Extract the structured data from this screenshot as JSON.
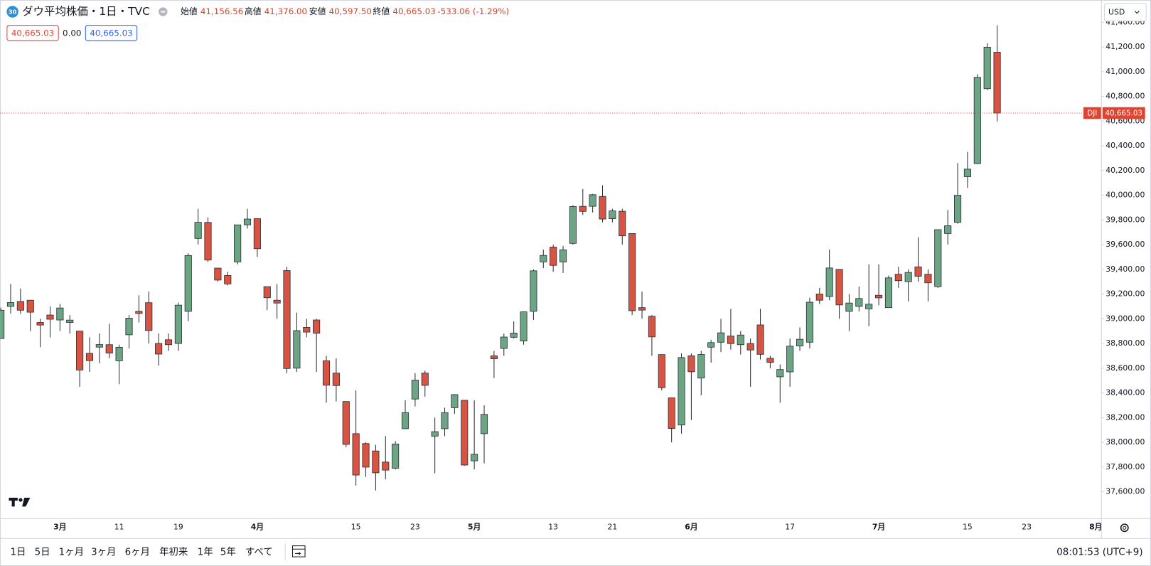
{
  "header": {
    "badge": "30",
    "symbol": "ダウ平均株価・1日・TVC",
    "ohlc": [
      {
        "label": "始値",
        "value": "41,156.56"
      },
      {
        "label": "高値",
        "value": "41,376.00"
      },
      {
        "label": "安値",
        "value": "40,597.50"
      },
      {
        "label": "終値",
        "value": "40,665.03"
      }
    ],
    "change": "-533.06 (-1.29%)",
    "bid": "40,665.03",
    "spread": "0.00",
    "ask": "40,665.03"
  },
  "currency": "USD",
  "chart_data": {
    "type": "candlestick",
    "symbol_tag": "DJI",
    "last_price": 40665.03,
    "last_price_label": "40,665.03",
    "up_color": "#6ba583",
    "down_color": "#d75442",
    "line_color": "#e0432f",
    "grid": false,
    "categories": [
      null,
      null,
      null,
      null,
      null,
      null,
      "3月",
      null,
      null,
      null,
      null,
      null,
      "11",
      null,
      null,
      null,
      null,
      null,
      "19",
      null,
      null,
      null,
      null,
      null,
      null,
      null,
      "4月",
      null,
      null,
      null,
      null,
      null,
      null,
      null,
      null,
      null,
      "15",
      null,
      null,
      null,
      null,
      null,
      "23",
      null,
      null,
      null,
      null,
      null,
      "5月",
      null,
      null,
      null,
      null,
      null,
      null,
      null,
      "13",
      null,
      null,
      null,
      null,
      null,
      "21",
      null,
      null,
      null,
      null,
      null,
      null,
      null,
      "6月",
      null,
      null,
      null,
      null,
      null,
      null,
      null,
      null,
      null,
      "17",
      null,
      null,
      null,
      null,
      null,
      null,
      null,
      null,
      "7月",
      null,
      null,
      null,
      null,
      null,
      null,
      null,
      null,
      "15",
      null,
      null,
      null,
      null,
      null,
      "23",
      null,
      null,
      null,
      null,
      null,
      null,
      "8月"
    ],
    "open": [
      38840,
      39100,
      39140,
      39150,
      38970,
      39030,
      38990,
      38970,
      38900,
      38720,
      38770,
      38790,
      38660,
      38870,
      39060,
      39130,
      38800,
      38830,
      38800,
      39060,
      39650,
      39780,
      39410,
      39350,
      39460,
      39760,
      39810,
      39260,
      39150,
      39390,
      38600,
      38930,
      38990,
      38660,
      38560,
      38330,
      38070,
      37990,
      37930,
      37840,
      37790,
      38110,
      38350,
      38560,
      38050,
      38110,
      38280,
      38340,
      37850,
      38070,
      38700,
      38760,
      38850,
      38820,
      39060,
      39460,
      39580,
      39460,
      39610,
      39910,
      39910,
      39990,
      39810,
      39870,
      39690,
      39090,
      39020,
      38710,
      38360,
      38140,
      38700,
      38520,
      38770,
      38810,
      38860,
      38790,
      38800,
      38950,
      38680,
      38530,
      38570,
      38780,
      38810,
      39200,
      39180,
      39400,
      39060,
      39100,
      39080,
      39190,
      39090,
      39360,
      39300,
      39420,
      39360,
      39260,
      39690,
      39780,
      40150,
      40256,
      40862,
      41156.56,
      null,
      null,
      null,
      null,
      null,
      null,
      null,
      null,
      null,
      null
    ],
    "high": [
      39090,
      39282,
      39245,
      39150,
      39000,
      39100,
      39120,
      39030,
      38900,
      38850,
      38880,
      38960,
      38790,
      39030,
      39190,
      39220,
      38880,
      38880,
      39130,
      39530,
      39890,
      39820,
      39410,
      39380,
      39760,
      39890,
      39810,
      39260,
      39280,
      39420,
      39050,
      39000,
      39000,
      38700,
      38680,
      38330,
      38420,
      38000,
      37980,
      38050,
      38010,
      38340,
      38560,
      38580,
      38200,
      38280,
      38390,
      38340,
      38340,
      38300,
      38740,
      38880,
      38980,
      39060,
      39400,
      39560,
      39600,
      39590,
      39920,
      40050,
      40010,
      40080,
      39890,
      39890,
      39690,
      39220,
      39030,
      38710,
      38360,
      38720,
      38720,
      38740,
      38830,
      39000,
      39080,
      38900,
      38840,
      39080,
      38700,
      38630,
      38840,
      38930,
      39170,
      39250,
      39560,
      39400,
      39200,
      39260,
      39440,
      39440,
      39350,
      39420,
      39400,
      39660,
      39400,
      39721,
      39880,
      40260,
      40350,
      40980,
      41230,
      41376,
      null,
      null,
      null,
      null,
      null,
      null,
      null,
      null,
      null,
      null
    ],
    "low": [
      38840,
      39042,
      39040,
      38900,
      38770,
      38850,
      38900,
      38880,
      38450,
      38570,
      38640,
      38680,
      38470,
      38760,
      38970,
      38800,
      38620,
      38740,
      38740,
      38980,
      39600,
      39460,
      39300,
      39270,
      39440,
      39730,
      39500,
      39070,
      39000,
      38560,
      38570,
      38850,
      38570,
      38320,
      38330,
      37960,
      37650,
      37720,
      37610,
      37700,
      37780,
      38110,
      38290,
      38370,
      37750,
      38050,
      38230,
      37810,
      37780,
      37830,
      38520,
      38700,
      38840,
      38790,
      38990,
      39410,
      39380,
      39370,
      39600,
      39840,
      39860,
      39780,
      39780,
      39600,
      39030,
      39000,
      38700,
      38420,
      38000,
      38070,
      38180,
      38380,
      38645,
      38730,
      38750,
      38710,
      38450,
      38670,
      38600,
      38320,
      38450,
      38740,
      38760,
      39120,
      39150,
      39000,
      38900,
      39060,
      38940,
      39110,
      39090,
      39250,
      39140,
      39300,
      39140,
      39250,
      39600,
      39770,
      40060,
      40250,
      40850,
      40597.5,
      null,
      null,
      null,
      null,
      null,
      null,
      null,
      null,
      null,
      null
    ],
    "close": [
      39069,
      39131,
      39069,
      39053,
      38949,
      38996,
      39087,
      38989,
      38585,
      38661,
      38791,
      38722,
      38769,
      39005,
      39043,
      38905,
      38714,
      38790,
      39110,
      39512,
      39781,
      39475,
      39313,
      39282,
      39760,
      39807,
      39567,
      39170,
      39127,
      38597,
      38904,
      38892,
      38883,
      38462,
      38459,
      37983,
      37735,
      37799,
      37753,
      37775,
      37986,
      38240,
      38503,
      38461,
      38086,
      38240,
      38386,
      37816,
      37903,
      38226,
      38676,
      38852,
      38884,
      39056,
      39388,
      39513,
      39432,
      39558,
      39908,
      39869,
      40004,
      39807,
      39873,
      39671,
      39065,
      39070,
      38853,
      38442,
      38112,
      38686,
      38571,
      38711,
      38807,
      38886,
      38799,
      38868,
      38747,
      38712,
      38647,
      38589,
      38778,
      38834,
      39134,
      39150,
      39411,
      39112,
      39127,
      39164,
      39118,
      39169,
      39331,
      39308,
      39375,
      39344,
      39291,
      39721,
      39753,
      40000,
      40211,
      40954,
      41198,
      40665.03,
      null,
      null,
      null,
      null,
      null,
      null,
      null,
      null,
      null,
      null
    ],
    "ylim": [
      37385,
      41580
    ],
    "yticks": [
      {
        "value": 37600,
        "label": "37,600.00"
      },
      {
        "value": 37800,
        "label": "37,800.00"
      },
      {
        "value": 38000,
        "label": "38,000.00"
      },
      {
        "value": 38200,
        "label": "38,200.00"
      },
      {
        "value": 38400,
        "label": "38,400.00"
      },
      {
        "value": 38600,
        "label": "38,600.00"
      },
      {
        "value": 38800,
        "label": "38,800.00"
      },
      {
        "value": 39000,
        "label": "39,000.00"
      },
      {
        "value": 39200,
        "label": "39,200.00"
      },
      {
        "value": 39400,
        "label": "39,400.00"
      },
      {
        "value": 39600,
        "label": "39,600.00"
      },
      {
        "value": 39800,
        "label": "39,800.00"
      },
      {
        "value": 40000,
        "label": "40,000.00"
      },
      {
        "value": 40200,
        "label": "40,200.00"
      },
      {
        "value": 40400,
        "label": "40,400.00"
      },
      {
        "value": 40600,
        "label": "40,600.00"
      },
      {
        "value": 40800,
        "label": "40,800.00"
      },
      {
        "value": 41000,
        "label": "41,000.00"
      },
      {
        "value": 41200,
        "label": "41,200.00"
      },
      {
        "value": 41400,
        "label": "41,400.00"
      }
    ]
  },
  "toolbar": {
    "ranges": [
      "1日",
      "5日",
      "1ヶ月",
      "3ヶ月",
      "6ヶ月",
      "年初来",
      "1年",
      "5年",
      "すべて"
    ],
    "clock": "08:01:53 (UTC+9)"
  }
}
